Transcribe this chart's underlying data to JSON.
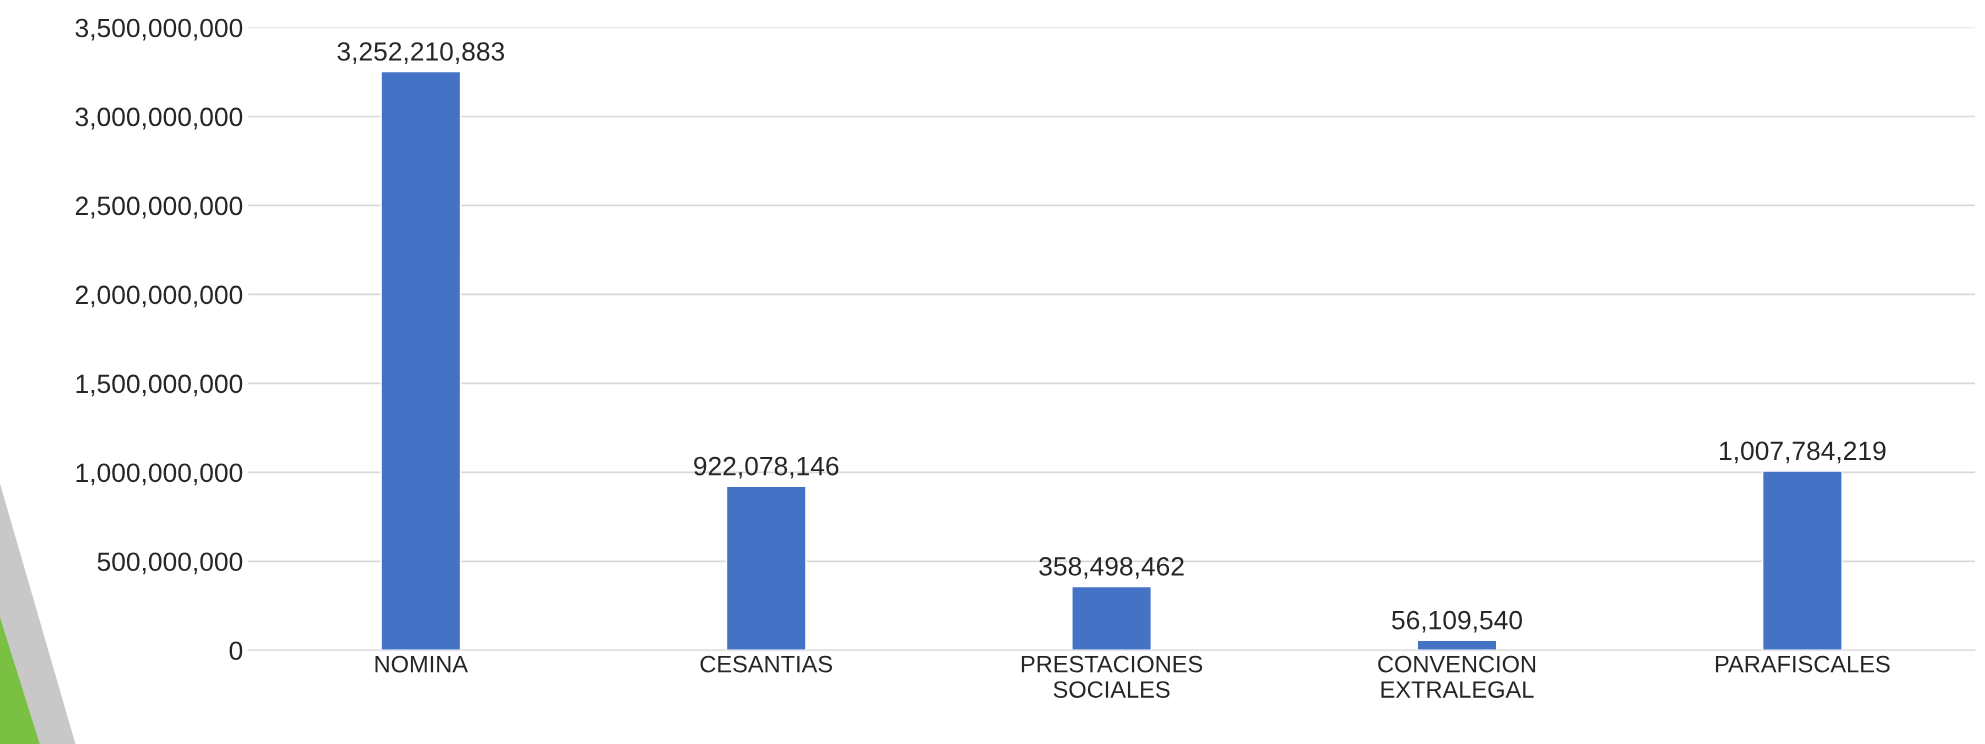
{
  "chart_data": {
    "type": "bar",
    "categories": [
      "NOMINA",
      "CESANTIAS",
      "PRESTACIONES SOCIALES",
      "CONVENCION EXTRALEGAL",
      "PARAFISCALES"
    ],
    "values": [
      3252210883,
      922078146,
      358498462,
      56109540,
      1007784219
    ],
    "color": "#4472c4",
    "ylim": [
      0,
      3500000000
    ],
    "yticks": [
      {
        "value": 0,
        "label": "0"
      },
      {
        "value": 500000000,
        "label": "500,000,000"
      },
      {
        "value": 1000000000,
        "label": "1,000,000,000"
      },
      {
        "value": 1500000000,
        "label": "1,500,000,000"
      },
      {
        "value": 2000000000,
        "label": "2,000,000,000"
      },
      {
        "value": 2500000000,
        "label": "2,500,000,000"
      },
      {
        "value": 3000000000,
        "label": "3,000,000,000"
      },
      {
        "value": 3500000000,
        "label": "3,500,000,000"
      }
    ],
    "value_labels": [
      "3,252,210,883",
      "922,078,146",
      "358,498,462",
      "56,109,540",
      "1,007,784,219"
    ],
    "grid": "y",
    "legend": false
  }
}
